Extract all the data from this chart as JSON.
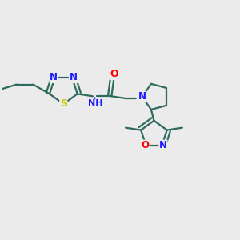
{
  "background_color": "#ebebeb",
  "bond_color": "#2d6b5e",
  "atom_colors": {
    "N": "#1a1aff",
    "O": "#ff0000",
    "S": "#cccc00",
    "C": "#2d6b5e"
  },
  "line_width": 1.6,
  "font_size": 8.5,
  "dpi": 100,
  "fig_width": 3.0,
  "fig_height": 3.0
}
